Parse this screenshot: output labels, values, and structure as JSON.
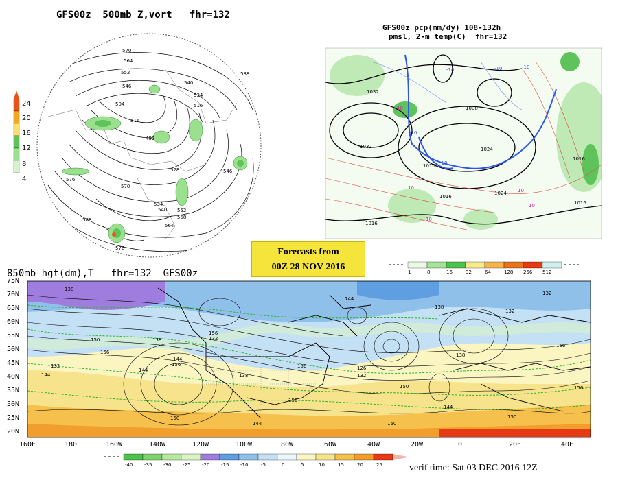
{
  "panel_500mb": {
    "title": "GFS00z  500mb Z,vort   fhr=132",
    "colorbar_ticks": [
      "24",
      "20",
      "16",
      "12",
      "8",
      "4"
    ],
    "colorbar_colors": [
      "#e6541b",
      "#f5a623",
      "#f7df73",
      "#5fc35c",
      "#9be08e",
      "#d8f2d0"
    ],
    "contour_labels": [
      "570",
      "564",
      "552",
      "546",
      "540",
      "534",
      "516",
      "504",
      "492",
      "528",
      "540",
      "588",
      "576",
      "558",
      "564",
      "552",
      "516",
      "534",
      "570",
      "576",
      "588",
      "546"
    ]
  },
  "panel_precip": {
    "title_line1": "GFS00z pcp(mm/dy) 108-132h",
    "title_line2": "pmsl, 2-m temp(C)  fhr=132",
    "contour_labels": [
      "1032",
      "1032",
      "1008",
      "1024",
      "1016",
      "1024",
      "1016",
      "1016",
      "1016",
      "1016"
    ],
    "temp_labels": [
      "-10",
      "-10",
      "-10",
      "10",
      "10",
      "10",
      "10",
      "-10",
      "-10",
      "10"
    ],
    "colorbar_ticks": [
      "1",
      "8",
      "16",
      "32",
      "64",
      "128",
      "256",
      "512"
    ],
    "colorbar_colors": [
      "#e9fbe3",
      "#a3e39a",
      "#4cc24a",
      "#f7e98c",
      "#f5b450",
      "#e8731c",
      "#e53a14",
      "#cfeeee"
    ]
  },
  "forecast_box": {
    "line1": "Forecasts from",
    "line2": "00Z 28 NOV 2016",
    "color": "#f5e43a"
  },
  "panel_850mb": {
    "title": "850mb hgt(dm),T   fhr=132  GFS00z",
    "lat_labels": [
      "75N",
      "70N",
      "65N",
      "60N",
      "55N",
      "50N",
      "45N",
      "40N",
      "35N",
      "30N",
      "25N",
      "20N"
    ],
    "lon_labels": [
      "160E",
      "180",
      "160W",
      "140W",
      "120W",
      "100W",
      "80W",
      "60W",
      "40W",
      "20W",
      "0",
      "20E",
      "40E"
    ],
    "contour_labels": [
      "138",
      "132",
      "156",
      "150",
      "144",
      "138",
      "144",
      "156",
      "132",
      "138",
      "150",
      "156",
      "144",
      "126",
      "132",
      "138",
      "150",
      "144",
      "138",
      "132",
      "144",
      "150",
      "156",
      "150",
      "156",
      "132",
      "144",
      "150",
      "156"
    ],
    "colorbar_ticks": [
      "-40",
      "-35",
      "-30",
      "-25",
      "-20",
      "-15",
      "-10",
      "-5",
      "0",
      "5",
      "10",
      "15",
      "20",
      "25"
    ],
    "colorbar_colors": [
      "#4cc24a",
      "#7fd36b",
      "#b6e89f",
      "#d9f2c6",
      "#9f7ddf",
      "#5f9ee0",
      "#8ec0ea",
      "#c4e0f4",
      "#eaf8fb",
      "#fbf5c2",
      "#f7e38c",
      "#f5c04c",
      "#f29e2c",
      "#e53a14"
    ]
  },
  "verif_time": "verif time: Sat 03 DEC 2016 12Z"
}
